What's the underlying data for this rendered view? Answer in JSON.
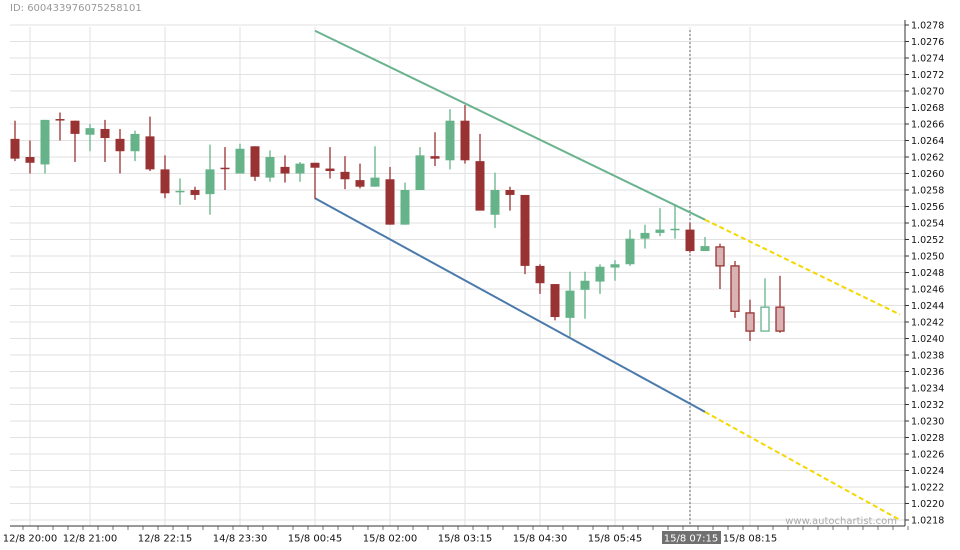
{
  "header": {
    "id_label": "ID: 600433976075258101"
  },
  "watermark": "www.autochartist.com",
  "colors": {
    "bull": "#66b38a",
    "bear": "#993333",
    "resistance": "#6ab38e",
    "support": "#4a7aab",
    "forecast": "#f5d800",
    "grid": "#e2e2e2",
    "highlight_label_bg": "#707070"
  },
  "chart_data": {
    "type": "candlestick",
    "title": "",
    "ylim": [
      1.0218,
      1.0278
    ],
    "y_ticks": [
      "1.0218",
      "1.0220",
      "1.0222",
      "1.0224",
      "1.0226",
      "1.0228",
      "1.0230",
      "1.0232",
      "1.0234",
      "1.0236",
      "1.0238",
      "1.0240",
      "1.0242",
      "1.0244",
      "1.0246",
      "1.0248",
      "1.0250",
      "1.0252",
      "1.0254",
      "1.0256",
      "1.0258",
      "1.0260",
      "1.0262",
      "1.0264",
      "1.0266",
      "1.0268",
      "1.0270",
      "1.0272",
      "1.0274",
      "1.0276",
      "1.0278"
    ],
    "grid": true,
    "x_tick_labels": [
      {
        "candle": 2,
        "label": "12/8 20:00"
      },
      {
        "candle": 6,
        "label": "12/8 21:00"
      },
      {
        "candle": 11,
        "label": "12/8 22:15"
      },
      {
        "candle": 16,
        "label": "14/8 23:30"
      },
      {
        "candle": 21,
        "label": "15/8 00:45"
      },
      {
        "candle": 26,
        "label": "15/8 02:00"
      },
      {
        "candle": 31,
        "label": "15/8 03:15"
      },
      {
        "candle": 36,
        "label": "15/8 04:30"
      },
      {
        "candle": 41,
        "label": "15/8 05:45"
      },
      {
        "candle": 46,
        "label": "15/8 07:15",
        "highlighted": true
      },
      {
        "candle": 50,
        "label": "15/8 08:15"
      }
    ],
    "current_marker_candle": 46,
    "candles": [
      {
        "o": 1.02642,
        "h": 1.02664,
        "l": 1.02615,
        "c": 1.02618
      },
      {
        "o": 1.0262,
        "h": 1.0264,
        "l": 1.026,
        "c": 1.02613
      },
      {
        "o": 1.02611,
        "h": 1.02665,
        "l": 1.026,
        "c": 1.02665
      },
      {
        "o": 1.02666,
        "h": 1.02674,
        "l": 1.0264,
        "c": 1.02665
      },
      {
        "o": 1.02664,
        "h": 1.02664,
        "l": 1.02614,
        "c": 1.02648
      },
      {
        "o": 1.02647,
        "h": 1.0266,
        "l": 1.02627,
        "c": 1.02655
      },
      {
        "o": 1.02654,
        "h": 1.02665,
        "l": 1.02614,
        "c": 1.02643
      },
      {
        "o": 1.02642,
        "h": 1.02654,
        "l": 1.026,
        "c": 1.02627
      },
      {
        "o": 1.02627,
        "h": 1.02652,
        "l": 1.02615,
        "c": 1.02648
      },
      {
        "o": 1.02645,
        "h": 1.02669,
        "l": 1.02603,
        "c": 1.02605
      },
      {
        "o": 1.02605,
        "h": 1.02622,
        "l": 1.0257,
        "c": 1.02576
      },
      {
        "o": 1.02578,
        "h": 1.02594,
        "l": 1.02562,
        "c": 1.02579
      },
      {
        "o": 1.0258,
        "h": 1.02584,
        "l": 1.02568,
        "c": 1.02574
      },
      {
        "o": 1.02575,
        "h": 1.02635,
        "l": 1.0255,
        "c": 1.02605
      },
      {
        "o": 1.02607,
        "h": 1.02632,
        "l": 1.0258,
        "c": 1.02606
      },
      {
        "o": 1.026,
        "h": 1.02636,
        "l": 1.026,
        "c": 1.0263
      },
      {
        "o": 1.02633,
        "h": 1.02633,
        "l": 1.02591,
        "c": 1.02596
      },
      {
        "o": 1.02595,
        "h": 1.02628,
        "l": 1.0259,
        "c": 1.0262
      },
      {
        "o": 1.02608,
        "h": 1.02622,
        "l": 1.02589,
        "c": 1.026
      },
      {
        "o": 1.026,
        "h": 1.02614,
        "l": 1.0259,
        "c": 1.02612
      },
      {
        "o": 1.02613,
        "h": 1.02613,
        "l": 1.02569,
        "c": 1.02607
      },
      {
        "o": 1.02606,
        "h": 1.02632,
        "l": 1.02594,
        "c": 1.02603
      },
      {
        "o": 1.02602,
        "h": 1.02621,
        "l": 1.02581,
        "c": 1.02593
      },
      {
        "o": 1.02592,
        "h": 1.02612,
        "l": 1.02582,
        "c": 1.02584
      },
      {
        "o": 1.02584,
        "h": 1.02633,
        "l": 1.02584,
        "c": 1.02595
      },
      {
        "o": 1.02593,
        "h": 1.02608,
        "l": 1.02538,
        "c": 1.02538
      },
      {
        "o": 1.02538,
        "h": 1.02589,
        "l": 1.02538,
        "c": 1.0258
      },
      {
        "o": 1.0258,
        "h": 1.02632,
        "l": 1.0258,
        "c": 1.02622
      },
      {
        "o": 1.02621,
        "h": 1.0265,
        "l": 1.02609,
        "c": 1.02618
      },
      {
        "o": 1.02616,
        "h": 1.02678,
        "l": 1.02605,
        "c": 1.02664
      },
      {
        "o": 1.02664,
        "h": 1.02683,
        "l": 1.02612,
        "c": 1.02616
      },
      {
        "o": 1.02615,
        "h": 1.02648,
        "l": 1.02555,
        "c": 1.02555
      },
      {
        "o": 1.0255,
        "h": 1.02601,
        "l": 1.02534,
        "c": 1.0258
      },
      {
        "o": 1.0258,
        "h": 1.02584,
        "l": 1.02555,
        "c": 1.02574
      },
      {
        "o": 1.02574,
        "h": 1.02574,
        "l": 1.02478,
        "c": 1.02488
      },
      {
        "o": 1.02488,
        "h": 1.0249,
        "l": 1.02454,
        "c": 1.02467
      },
      {
        "o": 1.02466,
        "h": 1.02466,
        "l": 1.02422,
        "c": 1.02426
      },
      {
        "o": 1.02425,
        "h": 1.02481,
        "l": 1.02402,
        "c": 1.02458
      },
      {
        "o": 1.02459,
        "h": 1.02481,
        "l": 1.02424,
        "c": 1.0247
      },
      {
        "o": 1.02469,
        "h": 1.0249,
        "l": 1.02454,
        "c": 1.02487
      },
      {
        "o": 1.02486,
        "h": 1.02495,
        "l": 1.0247,
        "c": 1.0249
      },
      {
        "o": 1.0249,
        "h": 1.02532,
        "l": 1.02488,
        "c": 1.02521
      },
      {
        "o": 1.02521,
        "h": 1.02538,
        "l": 1.02509,
        "c": 1.02528
      },
      {
        "o": 1.02528,
        "h": 1.02558,
        "l": 1.02524,
        "c": 1.02532
      },
      {
        "o": 1.02532,
        "h": 1.02562,
        "l": 1.02521,
        "c": 1.02533
      },
      {
        "o": 1.02532,
        "h": 1.0254,
        "l": 1.02504,
        "c": 1.02506
      },
      {
        "o": 1.02506,
        "h": 1.02523,
        "l": 1.02506,
        "c": 1.02512
      },
      {
        "o": 1.02511,
        "h": 1.02515,
        "l": 1.0246,
        "c": 1.02488,
        "hollow": true
      },
      {
        "o": 1.02488,
        "h": 1.02494,
        "l": 1.02425,
        "c": 1.02433,
        "hollow": true
      },
      {
        "o": 1.02431,
        "h": 1.02447,
        "l": 1.02397,
        "c": 1.02409,
        "hollow": true
      },
      {
        "o": 1.02409,
        "h": 1.02473,
        "l": 1.02409,
        "c": 1.02438,
        "hollow": true
      },
      {
        "o": 1.02438,
        "h": 1.02476,
        "l": 1.02407,
        "c": 1.02409,
        "hollow": true
      }
    ],
    "trend_lines": [
      {
        "role": "resistance",
        "from": {
          "candle": 20,
          "price": 1.02773
        },
        "to": {
          "candle": 46,
          "price": 1.02544
        },
        "forecast_to": {
          "candle": 59,
          "price": 1.02429
        }
      },
      {
        "role": "support",
        "from": {
          "candle": 20,
          "price": 1.0257
        },
        "to": {
          "candle": 46,
          "price": 1.02311
        },
        "forecast_to": {
          "candle": 59,
          "price": 1.0218
        }
      }
    ]
  }
}
